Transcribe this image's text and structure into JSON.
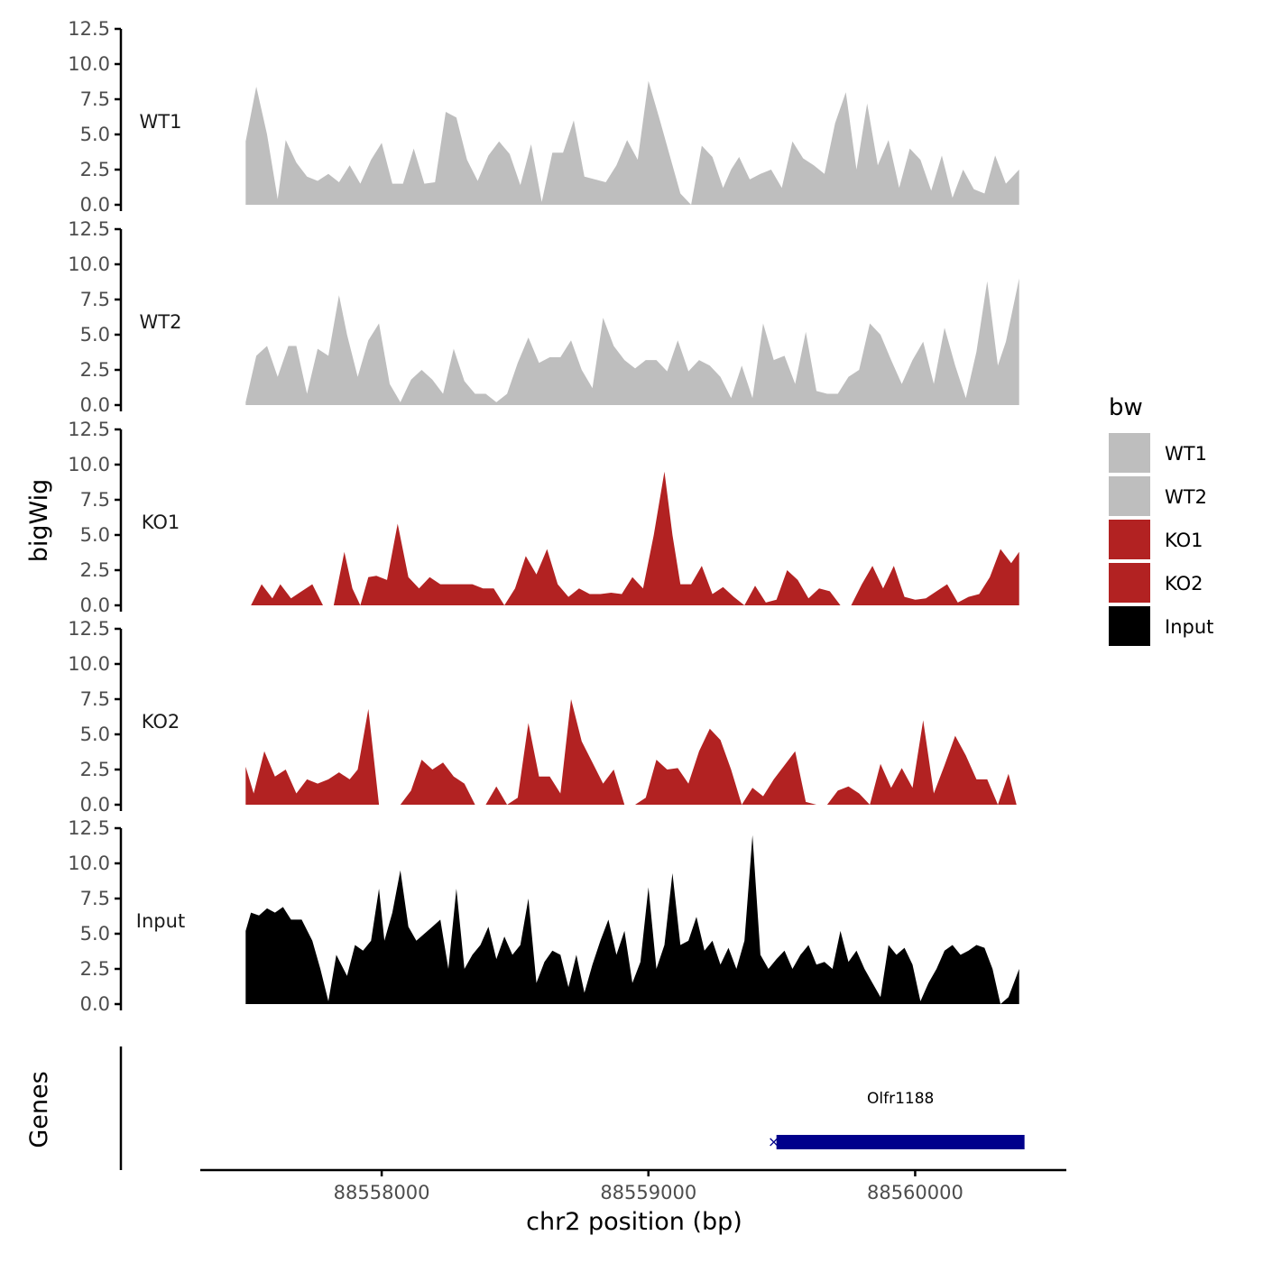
{
  "chart_data": {
    "type": "area",
    "title": "",
    "xlabel": "chr2 position (bp)",
    "ylabel": "bigWig",
    "genes_label": "Genes",
    "xlim": [
      88557330,
      88560560
    ],
    "x_ticks": [
      88558000,
      88559000,
      88560000
    ],
    "x_tick_labels": [
      "88558000",
      "88559000",
      "88560000"
    ],
    "ylim": [
      0,
      12.5
    ],
    "y_ticks": [
      0,
      2.5,
      5,
      7.5,
      10,
      12.5
    ],
    "y_tick_labels": [
      "0.0",
      "2.5",
      "5.0",
      "7.5",
      "10.0",
      "12.5"
    ],
    "legend": {
      "title": "bw",
      "position": "right",
      "entries": [
        {
          "label": "WT1",
          "color": "#bebebe"
        },
        {
          "label": "WT2",
          "color": "#bebebe"
        },
        {
          "label": "KO1",
          "color": "#b22222"
        },
        {
          "label": "KO2",
          "color": "#b22222"
        },
        {
          "label": "Input",
          "color": "#000000"
        }
      ]
    },
    "series": [
      {
        "name": "WT1",
        "color": "#bebebe",
        "x": [
          88557490,
          88557530,
          88557570,
          88557610,
          88557640,
          88557680,
          88557720,
          88557760,
          88557800,
          88557840,
          88557880,
          88557920,
          88557960,
          88558000,
          88558040,
          88558080,
          88558120,
          88558160,
          88558200,
          88558240,
          88558280,
          88558320,
          88558360,
          88558400,
          88558440,
          88558480,
          88558520,
          88558560,
          88558600,
          88558640,
          88558680,
          88558720,
          88558760,
          88558800,
          88558840,
          88558880,
          88558920,
          88558960,
          88559000,
          88559040,
          88559080,
          88559120,
          88559160,
          88559200,
          88559240,
          88559280,
          88559310,
          88559340,
          88559380,
          88559420,
          88559460,
          88559500,
          88559540,
          88559580,
          88559620,
          88559660,
          88559700,
          88559740,
          88559780,
          88559820,
          88559860,
          88559900,
          88559940,
          88559980,
          88560020,
          88560060,
          88560100,
          88560140,
          88560180,
          88560220,
          88560260,
          88560300,
          88560340,
          88560390
        ],
        "values": [
          4.5,
          8.4,
          5,
          0.4,
          4.6,
          3,
          2,
          1.7,
          2.2,
          1.6,
          2.8,
          1.5,
          3.2,
          4.4,
          1.5,
          1.5,
          4,
          1.5,
          1.6,
          6.6,
          6.2,
          3.2,
          1.7,
          3.5,
          4.5,
          3.6,
          1.4,
          4.3,
          0.2,
          3.7,
          3.7,
          6,
          2,
          1.8,
          1.6,
          2.8,
          4.6,
          3.2,
          8.8,
          6.2,
          3.5,
          0.8,
          0,
          4.2,
          3.4,
          1.2,
          2.5,
          3.4,
          1.8,
          2.2,
          2.5,
          1.2,
          4.5,
          3.3,
          2.8,
          2.2,
          5.8,
          8,
          2.5,
          7.2,
          2.8,
          4.6,
          1.2,
          4,
          3.2,
          1,
          3.5,
          0.5,
          2.5,
          1.1,
          0.8,
          3.5,
          1.5,
          2.5
        ]
      },
      {
        "name": "WT2",
        "color": "#bebebe",
        "x": [
          88557490,
          88557530,
          88557570,
          88557610,
          88557650,
          88557680,
          88557720,
          88557760,
          88557800,
          88557840,
          88557870,
          88557910,
          88557950,
          88557990,
          88558030,
          88558070,
          88558110,
          88558150,
          88558190,
          88558230,
          88558270,
          88558310,
          88558350,
          88558390,
          88558430,
          88558470,
          88558510,
          88558550,
          88558590,
          88558630,
          88558670,
          88558710,
          88558750,
          88558790,
          88558830,
          88558870,
          88558910,
          88558950,
          88558990,
          88559030,
          88559070,
          88559110,
          88559150,
          88559190,
          88559230,
          88559270,
          88559310,
          88559350,
          88559390,
          88559430,
          88559470,
          88559510,
          88559550,
          88559590,
          88559630,
          88559670,
          88559710,
          88559750,
          88559790,
          88559830,
          88559870,
          88559910,
          88559950,
          88559990,
          88560030,
          88560070,
          88560110,
          88560150,
          88560190,
          88560230,
          88560270,
          88560310,
          88560340,
          88560390
        ],
        "values": [
          0.2,
          3.5,
          4.2,
          2,
          4.2,
          4.2,
          0.8,
          4,
          3.5,
          7.8,
          5,
          2,
          4.6,
          5.8,
          1.5,
          0.2,
          1.8,
          2.5,
          1.8,
          0.8,
          4,
          1.7,
          0.8,
          0.8,
          0.2,
          0.8,
          3,
          4.8,
          3,
          3.4,
          3.4,
          4.6,
          2.5,
          1.2,
          6.2,
          4.2,
          3.2,
          2.6,
          3.2,
          3.2,
          2.4,
          4.6,
          2.4,
          3.2,
          2.8,
          2,
          0.5,
          2.8,
          0.5,
          5.8,
          3.2,
          3.5,
          1.5,
          5.2,
          1,
          0.8,
          0.8,
          2,
          2.5,
          5.8,
          5,
          3.2,
          1.5,
          3.2,
          4.5,
          1.5,
          5.5,
          2.8,
          0.5,
          3.8,
          8.8,
          2.8,
          4.5,
          9
        ]
      },
      {
        "name": "KO1",
        "color": "#b22222",
        "x": [
          88557510,
          88557550,
          88557590,
          88557620,
          88557660,
          88557700,
          88557740,
          88557780,
          88557820,
          88557860,
          88557890,
          88557920,
          88557950,
          88557980,
          88558020,
          88558060,
          88558100,
          88558140,
          88558180,
          88558220,
          88558260,
          88558300,
          88558340,
          88558380,
          88558420,
          88558460,
          88558500,
          88558540,
          88558580,
          88558620,
          88558660,
          88558700,
          88558740,
          88558780,
          88558820,
          88558860,
          88558900,
          88558940,
          88558980,
          88559020,
          88559060,
          88559090,
          88559120,
          88559160,
          88559200,
          88559240,
          88559280,
          88559320,
          88559360,
          88559400,
          88559440,
          88559480,
          88559520,
          88559560,
          88559600,
          88559640,
          88559680,
          88559720,
          88559760,
          88559800,
          88559840,
          88559880,
          88559920,
          88559960,
          88560000,
          88560040,
          88560080,
          88560120,
          88560160,
          88560200,
          88560240,
          88560280,
          88560320,
          88560360,
          88560390
        ],
        "values": [
          0,
          1.5,
          0.5,
          1.5,
          0.5,
          1,
          1.5,
          0,
          0,
          3.8,
          1.2,
          0,
          2,
          2.1,
          1.8,
          5.8,
          2,
          1.2,
          2,
          1.5,
          1.5,
          1.5,
          1.5,
          1.2,
          1.2,
          0,
          1.2,
          3.5,
          2.2,
          4,
          1.5,
          0.6,
          1.2,
          0.8,
          0.8,
          0.9,
          0.8,
          2,
          1.2,
          5,
          9.5,
          5,
          1.5,
          1.5,
          2.8,
          0.8,
          1.3,
          0.6,
          0,
          1.4,
          0.2,
          0.4,
          2.5,
          1.8,
          0.5,
          1.2,
          1,
          0,
          0,
          1.5,
          2.8,
          1.2,
          2.8,
          0.6,
          0.4,
          0.5,
          1,
          1.5,
          0.2,
          0.6,
          0.8,
          2,
          4,
          3,
          3.8
        ]
      },
      {
        "name": "KO2",
        "color": "#b22222",
        "x": [
          88557490,
          88557520,
          88557560,
          88557600,
          88557640,
          88557680,
          88557720,
          88557760,
          88557800,
          88557840,
          88557880,
          88557910,
          88557950,
          88557990,
          88558030,
          88558070,
          88558110,
          88558150,
          88558190,
          88558230,
          88558270,
          88558310,
          88558350,
          88558390,
          88558430,
          88558470,
          88558510,
          88558550,
          88558590,
          88558630,
          88558670,
          88558710,
          88558750,
          88558790,
          88558830,
          88558870,
          88558910,
          88558950,
          88558990,
          88559030,
          88559070,
          88559110,
          88559150,
          88559190,
          88559230,
          88559270,
          88559310,
          88559350,
          88559390,
          88559430,
          88559470,
          88559510,
          88559550,
          88559590,
          88559630,
          88559670,
          88559710,
          88559750,
          88559790,
          88559830,
          88559870,
          88559910,
          88559950,
          88559990,
          88560030,
          88560070,
          88560110,
          88560150,
          88560190,
          88560230,
          88560270,
          88560310,
          88560350,
          88560380
        ],
        "values": [
          2.7,
          0.8,
          3.8,
          2,
          2.5,
          0.8,
          1.8,
          1.5,
          1.8,
          2.3,
          1.8,
          2.5,
          6.8,
          0,
          0,
          0,
          1,
          3.2,
          2.5,
          3,
          2,
          1.5,
          0,
          0,
          1.3,
          0,
          0.5,
          5.8,
          2,
          2,
          0.8,
          7.5,
          4.5,
          3,
          1.5,
          2.5,
          0,
          0,
          0.5,
          3.2,
          2.5,
          2.6,
          1.5,
          3.8,
          5.4,
          4.6,
          2.5,
          0,
          1.2,
          0.6,
          1.8,
          2.8,
          3.8,
          0.2,
          0,
          0,
          1,
          1.3,
          0.8,
          0,
          2.9,
          1.2,
          2.6,
          1.2,
          6,
          0.8,
          2.8,
          4.9,
          3.5,
          1.8,
          1.8,
          0,
          2.2,
          0
        ]
      },
      {
        "name": "Input",
        "color": "#000000",
        "x": [
          88557490,
          88557510,
          88557540,
          88557570,
          88557600,
          88557630,
          88557660,
          88557700,
          88557740,
          88557770,
          88557800,
          88557830,
          88557870,
          88557900,
          88557930,
          88557960,
          88557990,
          88558010,
          88558040,
          88558070,
          88558100,
          88558130,
          88558160,
          88558190,
          88558220,
          88558250,
          88558280,
          88558310,
          88558340,
          88558370,
          88558400,
          88558430,
          88558460,
          88558490,
          88558520,
          88558550,
          88558580,
          88558610,
          88558640,
          88558670,
          88558700,
          88558730,
          88558760,
          88558790,
          88558820,
          88558850,
          88558880,
          88558910,
          88558940,
          88558970,
          88559000,
          88559030,
          88559060,
          88559090,
          88559120,
          88559150,
          88559180,
          88559210,
          88559240,
          88559270,
          88559300,
          88559330,
          88559360,
          88559390,
          88559420,
          88559450,
          88559480,
          88559510,
          88559540,
          88559570,
          88559600,
          88559630,
          88559660,
          88559690,
          88559720,
          88559750,
          88559780,
          88559810,
          88559840,
          88559870,
          88559900,
          88559930,
          88559960,
          88559990,
          88560020,
          88560050,
          88560080,
          88560110,
          88560140,
          88560170,
          88560200,
          88560230,
          88560260,
          88560290,
          88560320,
          88560350,
          88560390
        ],
        "values": [
          5.2,
          6.5,
          6.3,
          6.8,
          6.5,
          6.9,
          6,
          6,
          4.5,
          2.5,
          0.2,
          3.5,
          2,
          4.2,
          3.8,
          4.5,
          8.2,
          4.5,
          6.5,
          9.5,
          5.5,
          4.5,
          5,
          5.5,
          6,
          2.5,
          8.2,
          2.5,
          3.5,
          4.2,
          5.5,
          3.2,
          4.8,
          3.5,
          4.2,
          7.5,
          1.5,
          3,
          3.8,
          3.5,
          1.2,
          3.5,
          0.8,
          2.8,
          4.5,
          6,
          3.5,
          5.2,
          1.5,
          3,
          8.3,
          2.5,
          4.2,
          9.3,
          4.2,
          4.5,
          6.2,
          3.8,
          4.5,
          2.8,
          4,
          2.5,
          4.5,
          12,
          3.5,
          2.5,
          3.2,
          3.8,
          2.5,
          3.5,
          4.2,
          2.8,
          3,
          2.5,
          5.2,
          3,
          3.8,
          2.5,
          1.5,
          0.5,
          4.2,
          3.5,
          4,
          2.8,
          0.2,
          1.5,
          2.5,
          3.8,
          4.2,
          3.5,
          3.8,
          4.2,
          4,
          2.5,
          0,
          0.5,
          2.5
        ]
      }
    ],
    "genes": [
      {
        "name": "Olfr1188",
        "start": 88559480,
        "end": 88560410,
        "color": "#00008b",
        "strand": "-"
      }
    ]
  }
}
